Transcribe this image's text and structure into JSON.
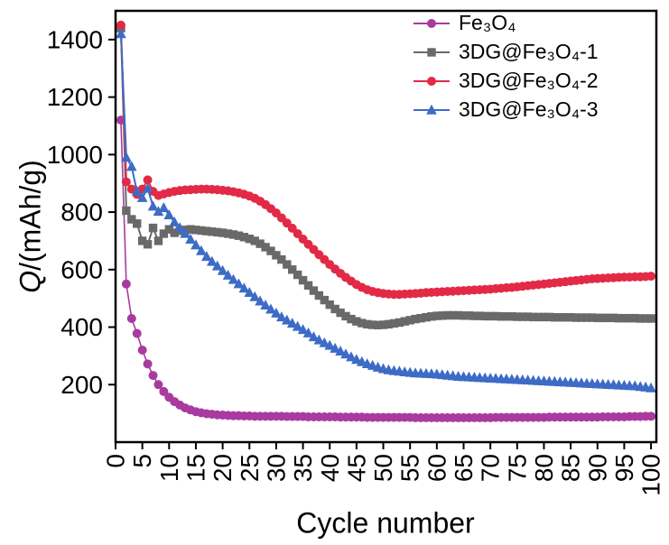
{
  "chart_data": {
    "type": "line",
    "title": "",
    "xlabel": "Cycle number",
    "ylabel_q": "Q",
    "ylabel_rest": "/(mAh/g)",
    "xlim": [
      0,
      101
    ],
    "ylim": [
      0,
      1500
    ],
    "grid": false,
    "legend_position": "top-right-inside",
    "x_ticks": [
      0,
      5,
      10,
      15,
      20,
      25,
      30,
      35,
      40,
      45,
      50,
      55,
      60,
      65,
      70,
      75,
      80,
      85,
      90,
      95,
      100
    ],
    "y_ticks": [
      200,
      400,
      600,
      800,
      1000,
      1200,
      1400
    ],
    "x_start": 1,
    "series": [
      {
        "id": "fe3o4",
        "name": "Fe₃O₄",
        "color": "#a93aa0",
        "marker": "circle",
        "line_width": 1.6,
        "values": [
          1120,
          550,
          430,
          378,
          320,
          272,
          232,
          200,
          176,
          156,
          141,
          129,
          119,
          112,
          106,
          102,
          99,
          97,
          95,
          94,
          93,
          92,
          92,
          91,
          91,
          90,
          90,
          90,
          90,
          90,
          90,
          89,
          89,
          89,
          89,
          88,
          88,
          88,
          88,
          88,
          88,
          87,
          87,
          87,
          87,
          87,
          86,
          86,
          86,
          86,
          86,
          86,
          86,
          86,
          86,
          85,
          85,
          85,
          85,
          85,
          85,
          85,
          85,
          85,
          85,
          85,
          85,
          85,
          85,
          85,
          86,
          86,
          86,
          86,
          86,
          86,
          86,
          86,
          86,
          86,
          87,
          87,
          87,
          87,
          87,
          87,
          87,
          87,
          87,
          87,
          88,
          88,
          88,
          88,
          88,
          89,
          89,
          89,
          90,
          90
        ]
      },
      {
        "id": "3dg-fe3o4-1",
        "name": "3DG@Fe₃O₄-1",
        "color": "#696969",
        "marker": "square",
        "line_width": 2,
        "values": [
          1440,
          805,
          775,
          760,
          700,
          688,
          745,
          700,
          725,
          740,
          728,
          735,
          738,
          740,
          738,
          736,
          734,
          732,
          730,
          728,
          725,
          722,
          718,
          713,
          707,
          700,
          690,
          678,
          665,
          650,
          635,
          618,
          600,
          582,
          563,
          545,
          527,
          510,
          494,
          478,
          463,
          450,
          438,
          428,
          420,
          414,
          410,
          408,
          407,
          408,
          410,
          413,
          416,
          420,
          424,
          428,
          431,
          434,
          437,
          439,
          440,
          441,
          441,
          441,
          440,
          440,
          439,
          439,
          438,
          438,
          438,
          437,
          437,
          437,
          436,
          436,
          436,
          435,
          435,
          435,
          435,
          434,
          434,
          434,
          434,
          433,
          433,
          433,
          433,
          432,
          432,
          432,
          432,
          431,
          431,
          431,
          431,
          430,
          430,
          430
        ]
      },
      {
        "id": "3dg-fe3o4-2",
        "name": "3DG@Fe₃O₄-2",
        "color": "#e22a46",
        "marker": "circle",
        "line_width": 2,
        "values": [
          1450,
          905,
          880,
          862,
          880,
          912,
          872,
          858,
          863,
          868,
          872,
          875,
          877,
          878,
          879,
          880,
          880,
          879,
          878,
          876,
          874,
          871,
          867,
          862,
          856,
          848,
          838,
          826,
          812,
          797,
          780,
          762,
          744,
          725,
          706,
          688,
          670,
          652,
          635,
          618,
          602,
          587,
          573,
          560,
          548,
          538,
          530,
          524,
          520,
          517,
          515,
          514,
          514,
          515,
          516,
          517,
          518,
          520,
          521,
          522,
          523,
          524,
          525,
          526,
          527,
          528,
          529,
          530,
          531,
          532,
          534,
          535,
          537,
          538,
          540,
          542,
          544,
          546,
          548,
          550,
          552,
          554,
          556,
          558,
          560,
          562,
          564,
          566,
          568,
          569,
          570,
          571,
          572,
          573,
          574,
          574,
          575,
          575,
          576,
          577
        ]
      },
      {
        "id": "3dg-fe3o4-3",
        "name": "3DG@Fe₃O₄-3",
        "color": "#3d6bc6",
        "marker": "triangle",
        "line_width": 2,
        "values": [
          1420,
          990,
          958,
          872,
          850,
          882,
          820,
          802,
          815,
          790,
          765,
          745,
          725,
          705,
          685,
          665,
          645,
          628,
          612,
          596,
          580,
          565,
          550,
          535,
          520,
          505,
          490,
          476,
          462,
          448,
          435,
          424,
          413,
          402,
          391,
          379,
          366,
          355,
          345,
          336,
          326,
          316,
          306,
          296,
          287,
          279,
          272,
          266,
          260,
          255,
          251,
          248,
          246,
          244,
          242,
          240,
          239,
          238,
          237,
          236,
          234,
          232,
          230,
          228,
          227,
          226,
          225,
          224,
          223,
          222,
          221,
          220,
          219,
          218,
          217,
          216,
          215,
          214,
          213,
          212,
          211,
          210,
          209,
          208,
          207,
          206,
          205,
          204,
          203,
          202,
          201,
          200,
          199,
          198,
          197,
          196,
          195,
          193,
          191,
          188
        ]
      }
    ]
  }
}
